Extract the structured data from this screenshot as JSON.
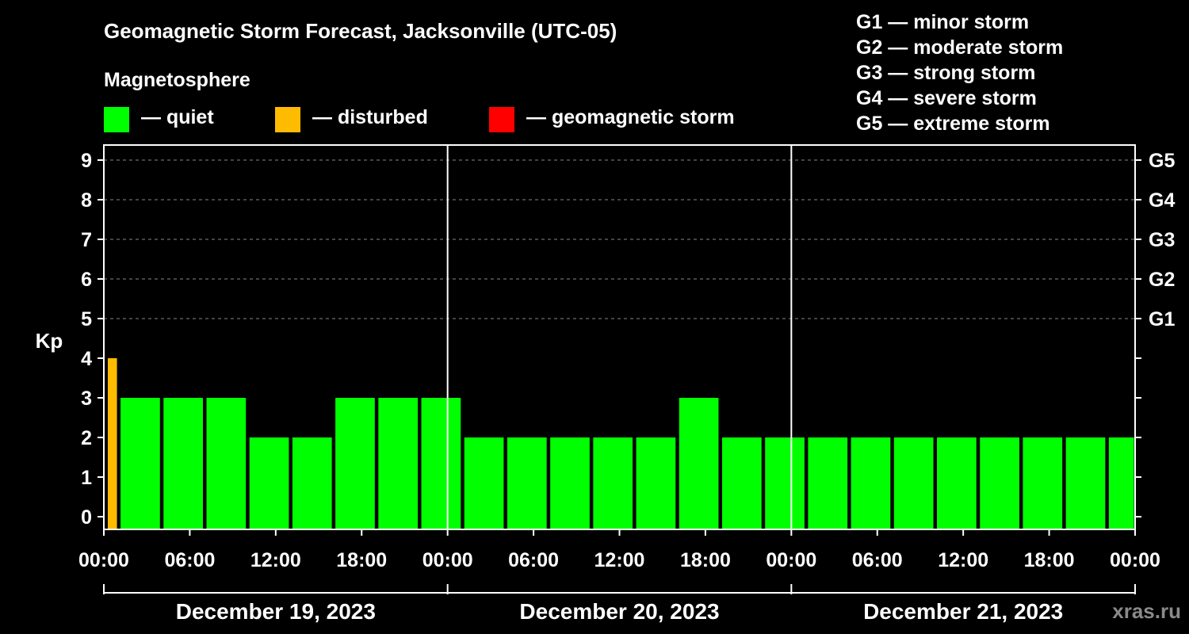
{
  "chart_data": {
    "type": "bar",
    "title": "Geomagnetic Storm Forecast, Jacksonville (UTC-05)",
    "subtitle": "Magnetosphere",
    "ylabel": "Kp",
    "ylim": [
      0,
      9
    ],
    "yticks": [
      "0",
      "1",
      "2",
      "3",
      "4",
      "5",
      "6",
      "7",
      "8",
      "9"
    ],
    "storm_levels": [
      {
        "label": "G1",
        "kp": 5
      },
      {
        "label": "G2",
        "kp": 6
      },
      {
        "label": "G3",
        "kp": 7
      },
      {
        "label": "G4",
        "kp": 8
      },
      {
        "label": "G5",
        "kp": 9
      }
    ],
    "legend": [
      {
        "label": "— quiet",
        "color": "#00ff00"
      },
      {
        "label": "— disturbed",
        "color": "#ffbb00"
      },
      {
        "label": "— geomagnetic storm",
        "color": "#ff0000"
      }
    ],
    "storm_scale": [
      "G1 — minor storm",
      "G2 — moderate storm",
      "G3 — strong storm",
      "G4 — severe storm",
      "G5 — extreme storm"
    ],
    "xtick_labels": [
      "00:00",
      "06:00",
      "12:00",
      "18:00",
      "00:00",
      "06:00",
      "12:00",
      "18:00",
      "00:00",
      "06:00",
      "12:00",
      "18:00",
      "00:00"
    ],
    "days": [
      "December 19, 2023",
      "December 20, 2023",
      "December 21, 2023"
    ],
    "bars": [
      {
        "start_h": 0,
        "end_h": 1,
        "kp": 4,
        "status": "disturbed"
      },
      {
        "start_h": 1,
        "end_h": 4,
        "kp": 3,
        "status": "quiet"
      },
      {
        "start_h": 4,
        "end_h": 7,
        "kp": 3,
        "status": "quiet"
      },
      {
        "start_h": 7,
        "end_h": 10,
        "kp": 3,
        "status": "quiet"
      },
      {
        "start_h": 10,
        "end_h": 13,
        "kp": 2,
        "status": "quiet"
      },
      {
        "start_h": 13,
        "end_h": 16,
        "kp": 2,
        "status": "quiet"
      },
      {
        "start_h": 16,
        "end_h": 19,
        "kp": 3,
        "status": "quiet"
      },
      {
        "start_h": 19,
        "end_h": 22,
        "kp": 3,
        "status": "quiet"
      },
      {
        "start_h": 22,
        "end_h": 25,
        "kp": 3,
        "status": "quiet"
      },
      {
        "start_h": 25,
        "end_h": 28,
        "kp": 2,
        "status": "quiet"
      },
      {
        "start_h": 28,
        "end_h": 31,
        "kp": 2,
        "status": "quiet"
      },
      {
        "start_h": 31,
        "end_h": 34,
        "kp": 2,
        "status": "quiet"
      },
      {
        "start_h": 34,
        "end_h": 37,
        "kp": 2,
        "status": "quiet"
      },
      {
        "start_h": 37,
        "end_h": 40,
        "kp": 2,
        "status": "quiet"
      },
      {
        "start_h": 40,
        "end_h": 43,
        "kp": 3,
        "status": "quiet"
      },
      {
        "start_h": 43,
        "end_h": 46,
        "kp": 2,
        "status": "quiet"
      },
      {
        "start_h": 46,
        "end_h": 49,
        "kp": 2,
        "status": "quiet"
      },
      {
        "start_h": 49,
        "end_h": 52,
        "kp": 2,
        "status": "quiet"
      },
      {
        "start_h": 52,
        "end_h": 55,
        "kp": 2,
        "status": "quiet"
      },
      {
        "start_h": 55,
        "end_h": 58,
        "kp": 2,
        "status": "quiet"
      },
      {
        "start_h": 58,
        "end_h": 61,
        "kp": 2,
        "status": "quiet"
      },
      {
        "start_h": 61,
        "end_h": 64,
        "kp": 2,
        "status": "quiet"
      },
      {
        "start_h": 64,
        "end_h": 67,
        "kp": 2,
        "status": "quiet"
      },
      {
        "start_h": 67,
        "end_h": 70,
        "kp": 2,
        "status": "quiet"
      },
      {
        "start_h": 70,
        "end_h": 72,
        "kp": 2,
        "status": "quiet"
      }
    ],
    "status_colors": {
      "quiet": "#00ff00",
      "disturbed": "#ffbb00",
      "storm": "#ff0000"
    },
    "watermark": "xras.ru"
  }
}
